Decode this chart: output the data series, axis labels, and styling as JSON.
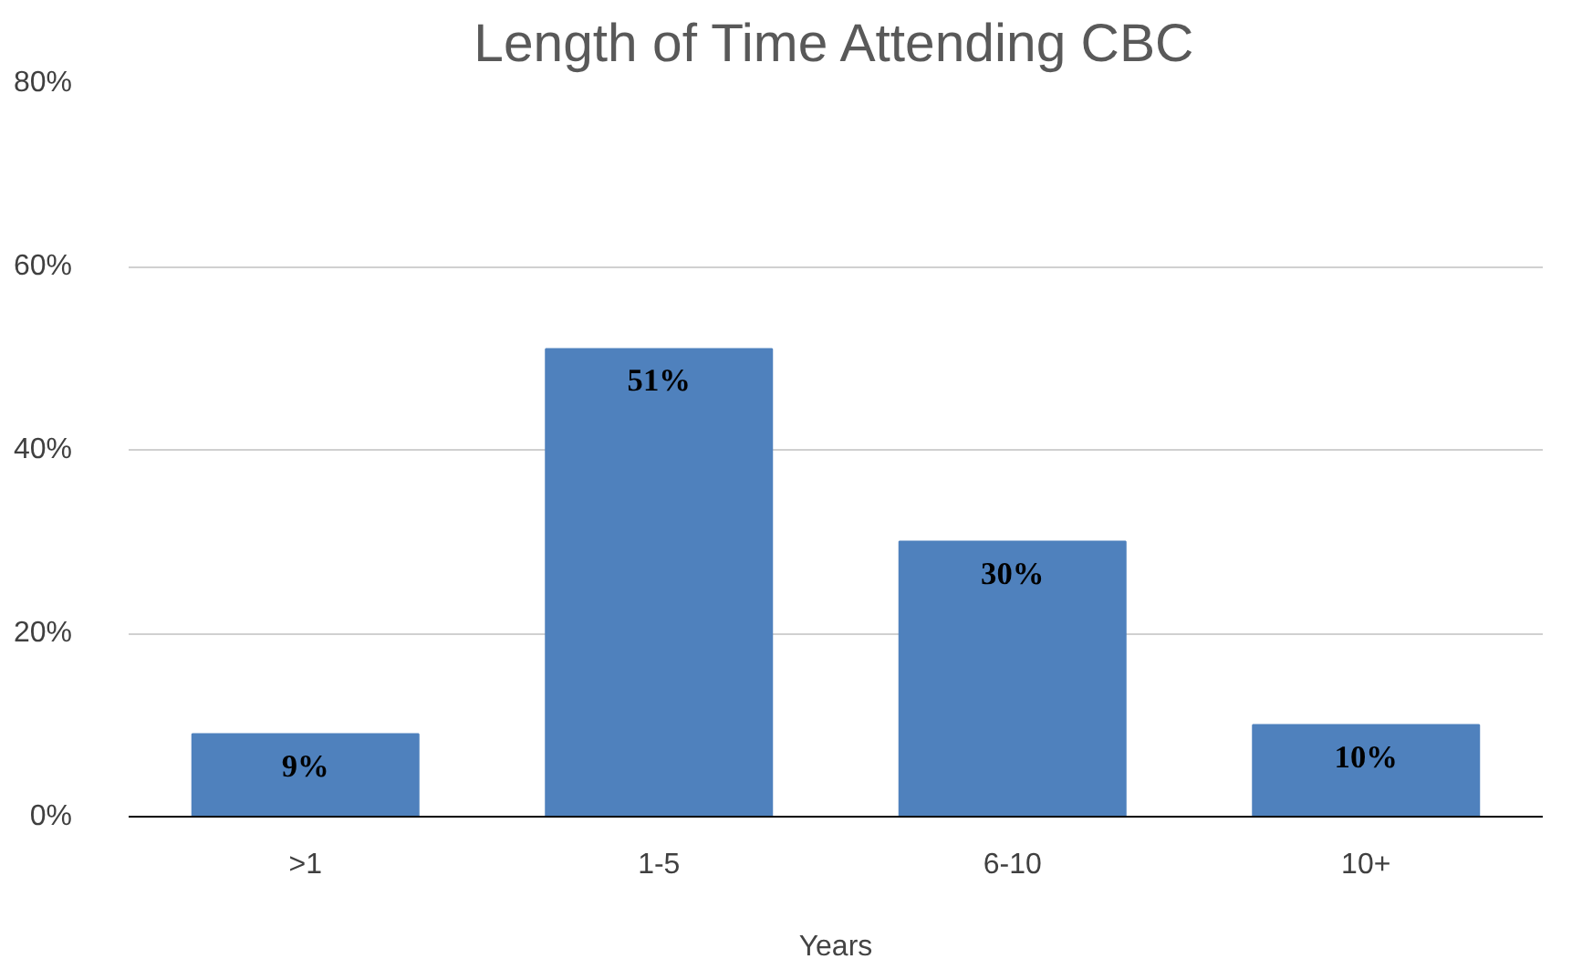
{
  "chart_data": {
    "type": "bar",
    "title": "Length of Time Attending CBC",
    "xlabel": "Years",
    "categories": [
      ">1",
      "1-5",
      "6-10",
      "10+"
    ],
    "values": [
      9,
      51,
      30,
      10
    ],
    "value_labels": [
      "9%",
      "51%",
      "30%",
      "10%"
    ],
    "color": "#4f81bd",
    "ylim": [
      0,
      80
    ],
    "yticks": [
      {
        "value": 0,
        "label": "0%"
      },
      {
        "value": 20,
        "label": "20%"
      },
      {
        "value": 40,
        "label": "40%"
      },
      {
        "value": 60,
        "label": "60%"
      },
      {
        "value": 80,
        "label": "80%"
      }
    ],
    "grid": "y"
  }
}
